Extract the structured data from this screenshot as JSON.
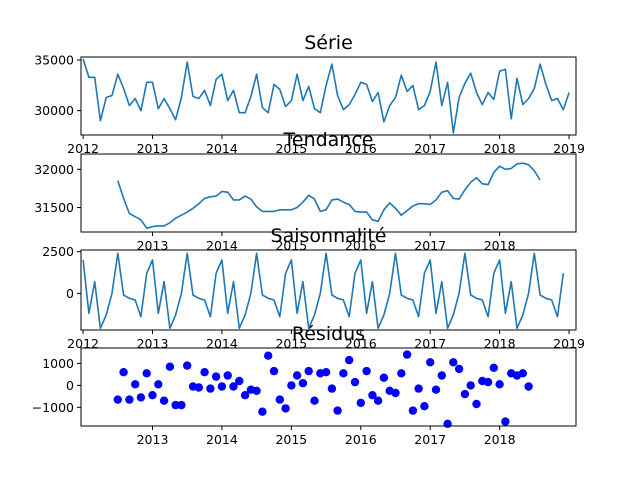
{
  "figure": {
    "line_color": "#1f77b4",
    "dot_color": "#0000ff"
  },
  "chart_data": [
    {
      "type": "line",
      "title": "Série",
      "xlim": [
        2011.97,
        2019.1
      ],
      "ylim": [
        27600,
        35300
      ],
      "xticks": [
        {
          "v": 2012,
          "label": "2012"
        },
        {
          "v": 2013,
          "label": "2013"
        },
        {
          "v": 2014,
          "label": "2014"
        },
        {
          "v": 2015,
          "label": "2015"
        },
        {
          "v": 2016,
          "label": "2016"
        },
        {
          "v": 2017,
          "label": "2017"
        },
        {
          "v": 2018,
          "label": "2018"
        },
        {
          "v": 2019,
          "label": "2019"
        }
      ],
      "yticks": [
        {
          "v": 30000,
          "label": "30000"
        },
        {
          "v": 35000,
          "label": "35000"
        }
      ],
      "x_start": 2012.0,
      "x_step": 0.08333333,
      "values": [
        35100,
        33300,
        33300,
        29000,
        31300,
        31500,
        33600,
        32200,
        30500,
        31200,
        30000,
        32800,
        32800,
        30200,
        31200,
        30200,
        29100,
        31300,
        34800,
        31400,
        31200,
        32000,
        30500,
        33100,
        33600,
        31000,
        32000,
        29800,
        29800,
        31400,
        33600,
        30300,
        29800,
        32600,
        32100,
        30400,
        31000,
        33600,
        31000,
        32400,
        30200,
        29800,
        32500,
        34600,
        31500,
        30100,
        30600,
        31600,
        32800,
        32600,
        30900,
        31800,
        28900,
        30500,
        31300,
        33500,
        31900,
        32500,
        30100,
        30500,
        31900,
        34800,
        30500,
        32800,
        27800,
        31300,
        32700,
        33700,
        31800,
        30600,
        31800,
        31100,
        33900,
        34100,
        29200,
        33200,
        30600,
        31200,
        32200,
        34600,
        32600,
        31000,
        31200,
        30100,
        31800
      ]
    },
    {
      "type": "line",
      "title": "Tendance",
      "xlim": [
        2011.97,
        2019.1
      ],
      "ylim": [
        31180,
        32200
      ],
      "xticks": [
        {
          "v": 2013,
          "label": "2013"
        },
        {
          "v": 2014,
          "label": "2014"
        },
        {
          "v": 2015,
          "label": "2015"
        },
        {
          "v": 2016,
          "label": "2016"
        },
        {
          "v": 2017,
          "label": "2017"
        },
        {
          "v": 2018,
          "label": "2018"
        }
      ],
      "yticks": [
        {
          "v": 31500,
          "label": "31500"
        },
        {
          "v": 32000,
          "label": "32000"
        }
      ],
      "x_start": 2012.5,
      "x_step": 0.08333333,
      "values": [
        31850,
        31620,
        31420,
        31380,
        31340,
        31230,
        31250,
        31260,
        31260,
        31300,
        31360,
        31400,
        31440,
        31490,
        31550,
        31620,
        31640,
        31650,
        31710,
        31700,
        31600,
        31600,
        31650,
        31610,
        31510,
        31450,
        31450,
        31450,
        31470,
        31470,
        31470,
        31500,
        31570,
        31660,
        31610,
        31450,
        31470,
        31600,
        31610,
        31570,
        31540,
        31450,
        31440,
        31440,
        31340,
        31320,
        31470,
        31560,
        31490,
        31400,
        31460,
        31520,
        31550,
        31550,
        31540,
        31600,
        31700,
        31720,
        31620,
        31610,
        31730,
        31830,
        31890,
        31810,
        31800,
        31960,
        32040,
        32000,
        32010,
        32070,
        32080,
        32060,
        31980,
        31860
      ]
    },
    {
      "type": "line",
      "title": "Saisonnalité",
      "xlim": [
        2011.97,
        2019.1
      ],
      "ylim": [
        -2200,
        2600
      ],
      "xticks": [
        {
          "v": 2012,
          "label": "2012"
        },
        {
          "v": 2013,
          "label": "2013"
        },
        {
          "v": 2014,
          "label": "2014"
        },
        {
          "v": 2015,
          "label": "2015"
        },
        {
          "v": 2016,
          "label": "2016"
        },
        {
          "v": 2017,
          "label": "2017"
        },
        {
          "v": 2018,
          "label": "2018"
        },
        {
          "v": 2019,
          "label": "2019"
        }
      ],
      "yticks": [
        {
          "v": 0,
          "label": "0"
        },
        {
          "v": 2500,
          "label": "2500"
        }
      ],
      "x_start": 2012.0,
      "x_step": 0.08333333,
      "pattern": [
        2000,
        -1200,
        700,
        -2100,
        -1300,
        0,
        2400,
        -100,
        -300,
        -400,
        -1400,
        1200
      ],
      "periods": 7,
      "tail": [
        2000,
        -1200,
        700,
        -2100,
        -1300,
        0,
        2400,
        -100,
        -300,
        -400,
        -1400,
        1200,
        2000
      ]
    },
    {
      "type": "scatter",
      "title": "Résidus",
      "xlim": [
        2011.97,
        2019.1
      ],
      "ylim": [
        -1850,
        1700
      ],
      "xticks": [
        {
          "v": 2013,
          "label": "2013"
        },
        {
          "v": 2014,
          "label": "2014"
        },
        {
          "v": 2015,
          "label": "2015"
        },
        {
          "v": 2016,
          "label": "2016"
        },
        {
          "v": 2017,
          "label": "2017"
        },
        {
          "v": 2018,
          "label": "2018"
        }
      ],
      "yticks": [
        {
          "v": -1000,
          "label": "−1000"
        },
        {
          "v": 0,
          "label": "0"
        },
        {
          "v": 1000,
          "label": "1000"
        }
      ],
      "x_start": 2012.5,
      "x_step": 0.08333333,
      "values": [
        -650,
        600,
        -650,
        50,
        -550,
        550,
        -450,
        50,
        -700,
        850,
        -900,
        -900,
        900,
        -50,
        -100,
        600,
        -150,
        400,
        -50,
        450,
        -50,
        200,
        -450,
        -200,
        -250,
        -1200,
        1350,
        650,
        -650,
        -1050,
        0,
        450,
        100,
        650,
        -700,
        550,
        600,
        -150,
        -1150,
        550,
        1150,
        150,
        -800,
        650,
        -450,
        -700,
        350,
        -250,
        -350,
        550,
        1400,
        -1150,
        -150,
        -950,
        1050,
        -200,
        450,
        -1750,
        1050,
        750,
        -400,
        0,
        -850,
        200,
        150,
        800,
        50,
        -1650,
        550,
        450,
        550,
        -50
      ]
    }
  ]
}
